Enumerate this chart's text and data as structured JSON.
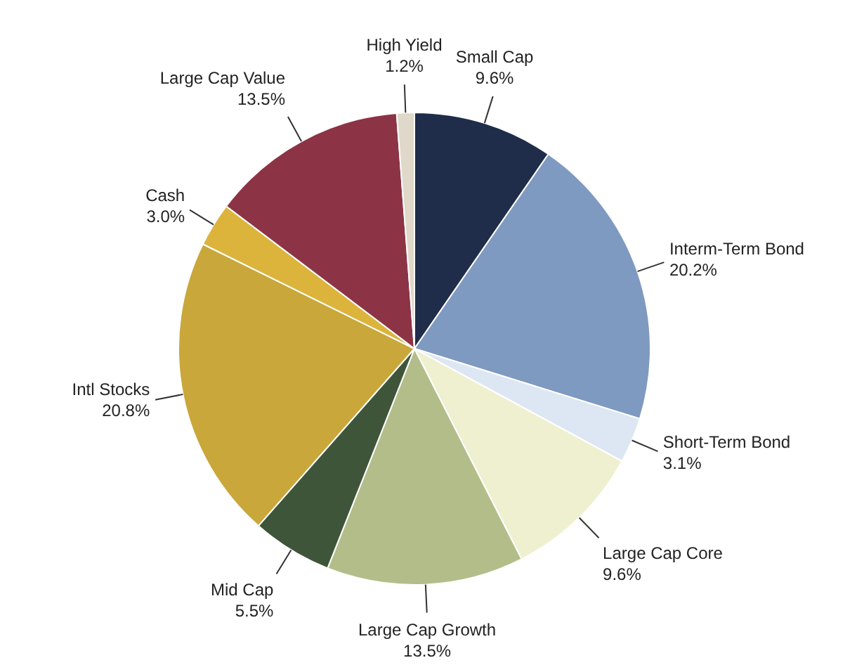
{
  "chart_data": {
    "type": "pie",
    "categories": [
      "Small Cap",
      "Interm-Term Bond",
      "Short-Term Bond",
      "Large Cap Core",
      "Large Cap Growth",
      "Mid Cap",
      "Intl Stocks",
      "Cash",
      "Large Cap Value",
      "High Yield"
    ],
    "values": [
      9.6,
      20.2,
      3.1,
      9.6,
      13.5,
      5.5,
      20.8,
      3.0,
      13.5,
      1.2
    ],
    "value_labels": [
      "9.6%",
      "20.2%",
      "3.1%",
      "9.6%",
      "13.5%",
      "5.5%",
      "20.8%",
      "3.0%",
      "13.5%",
      "1.2%"
    ],
    "colors": [
      "#1f2d4a",
      "#7f9ac0",
      "#dde6f3",
      "#eef0d0",
      "#b3bd8a",
      "#3f5539",
      "#c9a73a",
      "#dcb43c",
      "#8c3445",
      "#e0d8c8"
    ],
    "legend": false
  }
}
